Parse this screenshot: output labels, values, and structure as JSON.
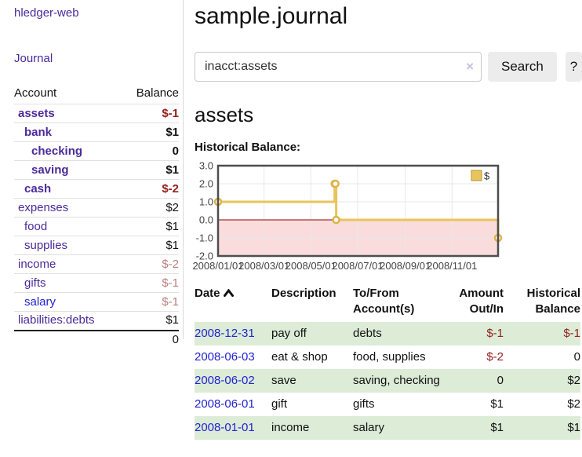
{
  "colors": {
    "link-purple": "#4b2a9b",
    "link-blue": "#2323d1",
    "neg-strong": "#95201f",
    "neg-muted": "#bc7e7e",
    "row-green": "#dcecd7",
    "button-bg": "#ececec",
    "border-light": "#d8d8d8"
  },
  "sidebar": {
    "app_title": "hledger-web",
    "nav_journal": "Journal",
    "table": {
      "header_account": "Account",
      "header_balance": "Balance",
      "rows": [
        {
          "account": "assets",
          "balance": "$-1"
        },
        {
          "account": "bank",
          "balance": "$1"
        },
        {
          "account": "checking",
          "balance": "0"
        },
        {
          "account": "saving",
          "balance": "$1"
        },
        {
          "account": "cash",
          "balance": "$-2"
        },
        {
          "account": "expenses",
          "balance": "$2"
        },
        {
          "account": "food",
          "balance": "$1"
        },
        {
          "account": "supplies",
          "balance": "$1"
        },
        {
          "account": "income",
          "balance": "$-2"
        },
        {
          "account": "gifts",
          "balance": "$-1"
        },
        {
          "account": "salary",
          "balance": "$-1"
        },
        {
          "account": "liabilities:debts",
          "balance": "$1"
        }
      ],
      "total": "0"
    }
  },
  "main": {
    "title": "sample.journal",
    "search": {
      "value": "inacct:assets",
      "clear_glyph": "×",
      "button_label": "Search",
      "help_label": "?"
    },
    "account_heading": "assets",
    "chart_label": "Historical Balance:",
    "register": {
      "headers": {
        "date": "Date",
        "description": "Description",
        "tofrom_line1": "To/From",
        "tofrom_line2": "Account(s)",
        "amount_line1": "Amount",
        "amount_line2": "Out/In",
        "hist_line1": "Historical",
        "hist_line2": "Balance"
      },
      "rows": [
        {
          "date": "2008-12-31",
          "description": "pay off",
          "accounts": "debts",
          "amount": "$-1",
          "balance": "$-1"
        },
        {
          "date": "2008-06-03",
          "description": "eat & shop",
          "accounts": "food, supplies",
          "amount": "$-2",
          "balance": "0"
        },
        {
          "date": "2008-06-02",
          "description": "save",
          "accounts": "saving, checking",
          "amount": "0",
          "balance": "$2"
        },
        {
          "date": "2008-06-01",
          "description": "gift",
          "accounts": "gifts",
          "amount": "$1",
          "balance": "$2"
        },
        {
          "date": "2008-01-01",
          "description": "income",
          "accounts": "salary",
          "amount": "$1",
          "balance": "$1"
        }
      ]
    }
  },
  "chart_data": {
    "type": "line",
    "title": "Historical Balance",
    "step": true,
    "series": [
      {
        "name": "$",
        "points": [
          [
            "2008-01-01",
            1
          ],
          [
            "2008-06-01",
            2
          ],
          [
            "2008-06-02",
            2
          ],
          [
            "2008-06-03",
            0
          ],
          [
            "2008-12-31",
            -1
          ]
        ]
      }
    ],
    "xlim": [
      "2008-01-01",
      "2008-12-31"
    ],
    "ylim": [
      -2,
      3
    ],
    "x_ticks": [
      "2008/01/01",
      "2008/03/01",
      "2008/05/01",
      "2008/07/01",
      "2008/09/01",
      "2008/11/01"
    ],
    "y_ticks": [
      3,
      2,
      1,
      0,
      -1,
      -2
    ],
    "legend": "$",
    "legend_position": "top-right",
    "grid": true,
    "line_color": "#e8c55c",
    "marker_stroke": "#ddb347",
    "negative_region_fill": "#fadcdc",
    "zero_line_color": "#8b0000",
    "frame_color": "#4d4d4d",
    "grid_color": "#e8e8e8",
    "tick_label_color": "#444444"
  }
}
